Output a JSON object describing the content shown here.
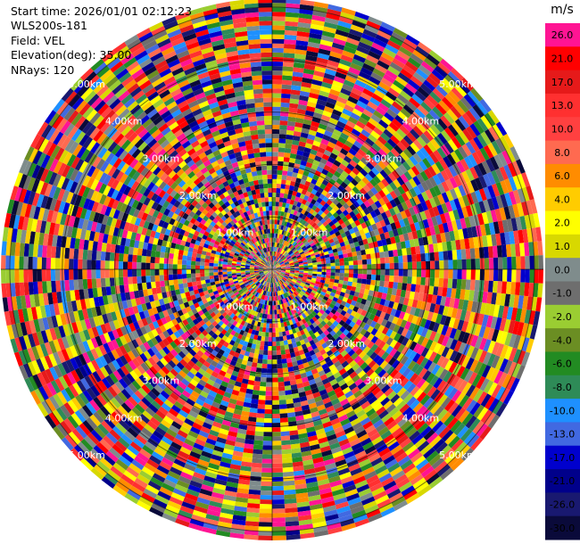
{
  "header": {
    "start_time": "Start time: 2026/01/01 02:12:23",
    "instrument": "WLS200s-181",
    "field": "Field: VEL",
    "elevation": "Elevation(deg): 35.00",
    "nrays": "NRays: 120"
  },
  "colorbar": {
    "unit": "m/s",
    "ticks": [
      "26.0",
      "21.0",
      "17.0",
      "13.0",
      "10.0",
      "8.0",
      "6.0",
      "4.0",
      "2.0",
      "1.0",
      "0.0",
      "-1.0",
      "-2.0",
      "-4.0",
      "-6.0",
      "-8.0",
      "-10.0",
      "-13.0",
      "-17.0",
      "-21.0",
      "-26.0",
      "-30.0"
    ],
    "colors": [
      "#ff1493",
      "#ff0000",
      "#e61a1a",
      "#ff3030",
      "#ff4040",
      "#ff6a50",
      "#ff8c00",
      "#ffcc00",
      "#ffff00",
      "#d8d800",
      "#7f8c8c",
      "#6e6e6e",
      "#9acd32",
      "#6b8e23",
      "#228b22",
      "#2e8b57",
      "#1e90ff",
      "#4169e1",
      "#0000cd",
      "#00008b",
      "#191970",
      "#0a0a3a"
    ]
  },
  "chart_data": {
    "type": "heatmap",
    "title": "",
    "projection": "polar (PPI scan)",
    "field": "VEL",
    "units": "m/s",
    "n_rays": 120,
    "elevation_deg": 35.0,
    "start_time": "2026/01/01 02:12:23",
    "instrument": "WLS200s-181",
    "range_rings_km": [
      "1.00km",
      "2.00km",
      "3.00km",
      "4.00km",
      "5.00km"
    ],
    "range_ring_values_km": [
      1,
      2,
      3,
      4,
      5
    ],
    "colorbar_min": -30.0,
    "colorbar_max": 26.0,
    "grid": true,
    "data_note": "Radial velocity values appear as noise across all range gates"
  }
}
